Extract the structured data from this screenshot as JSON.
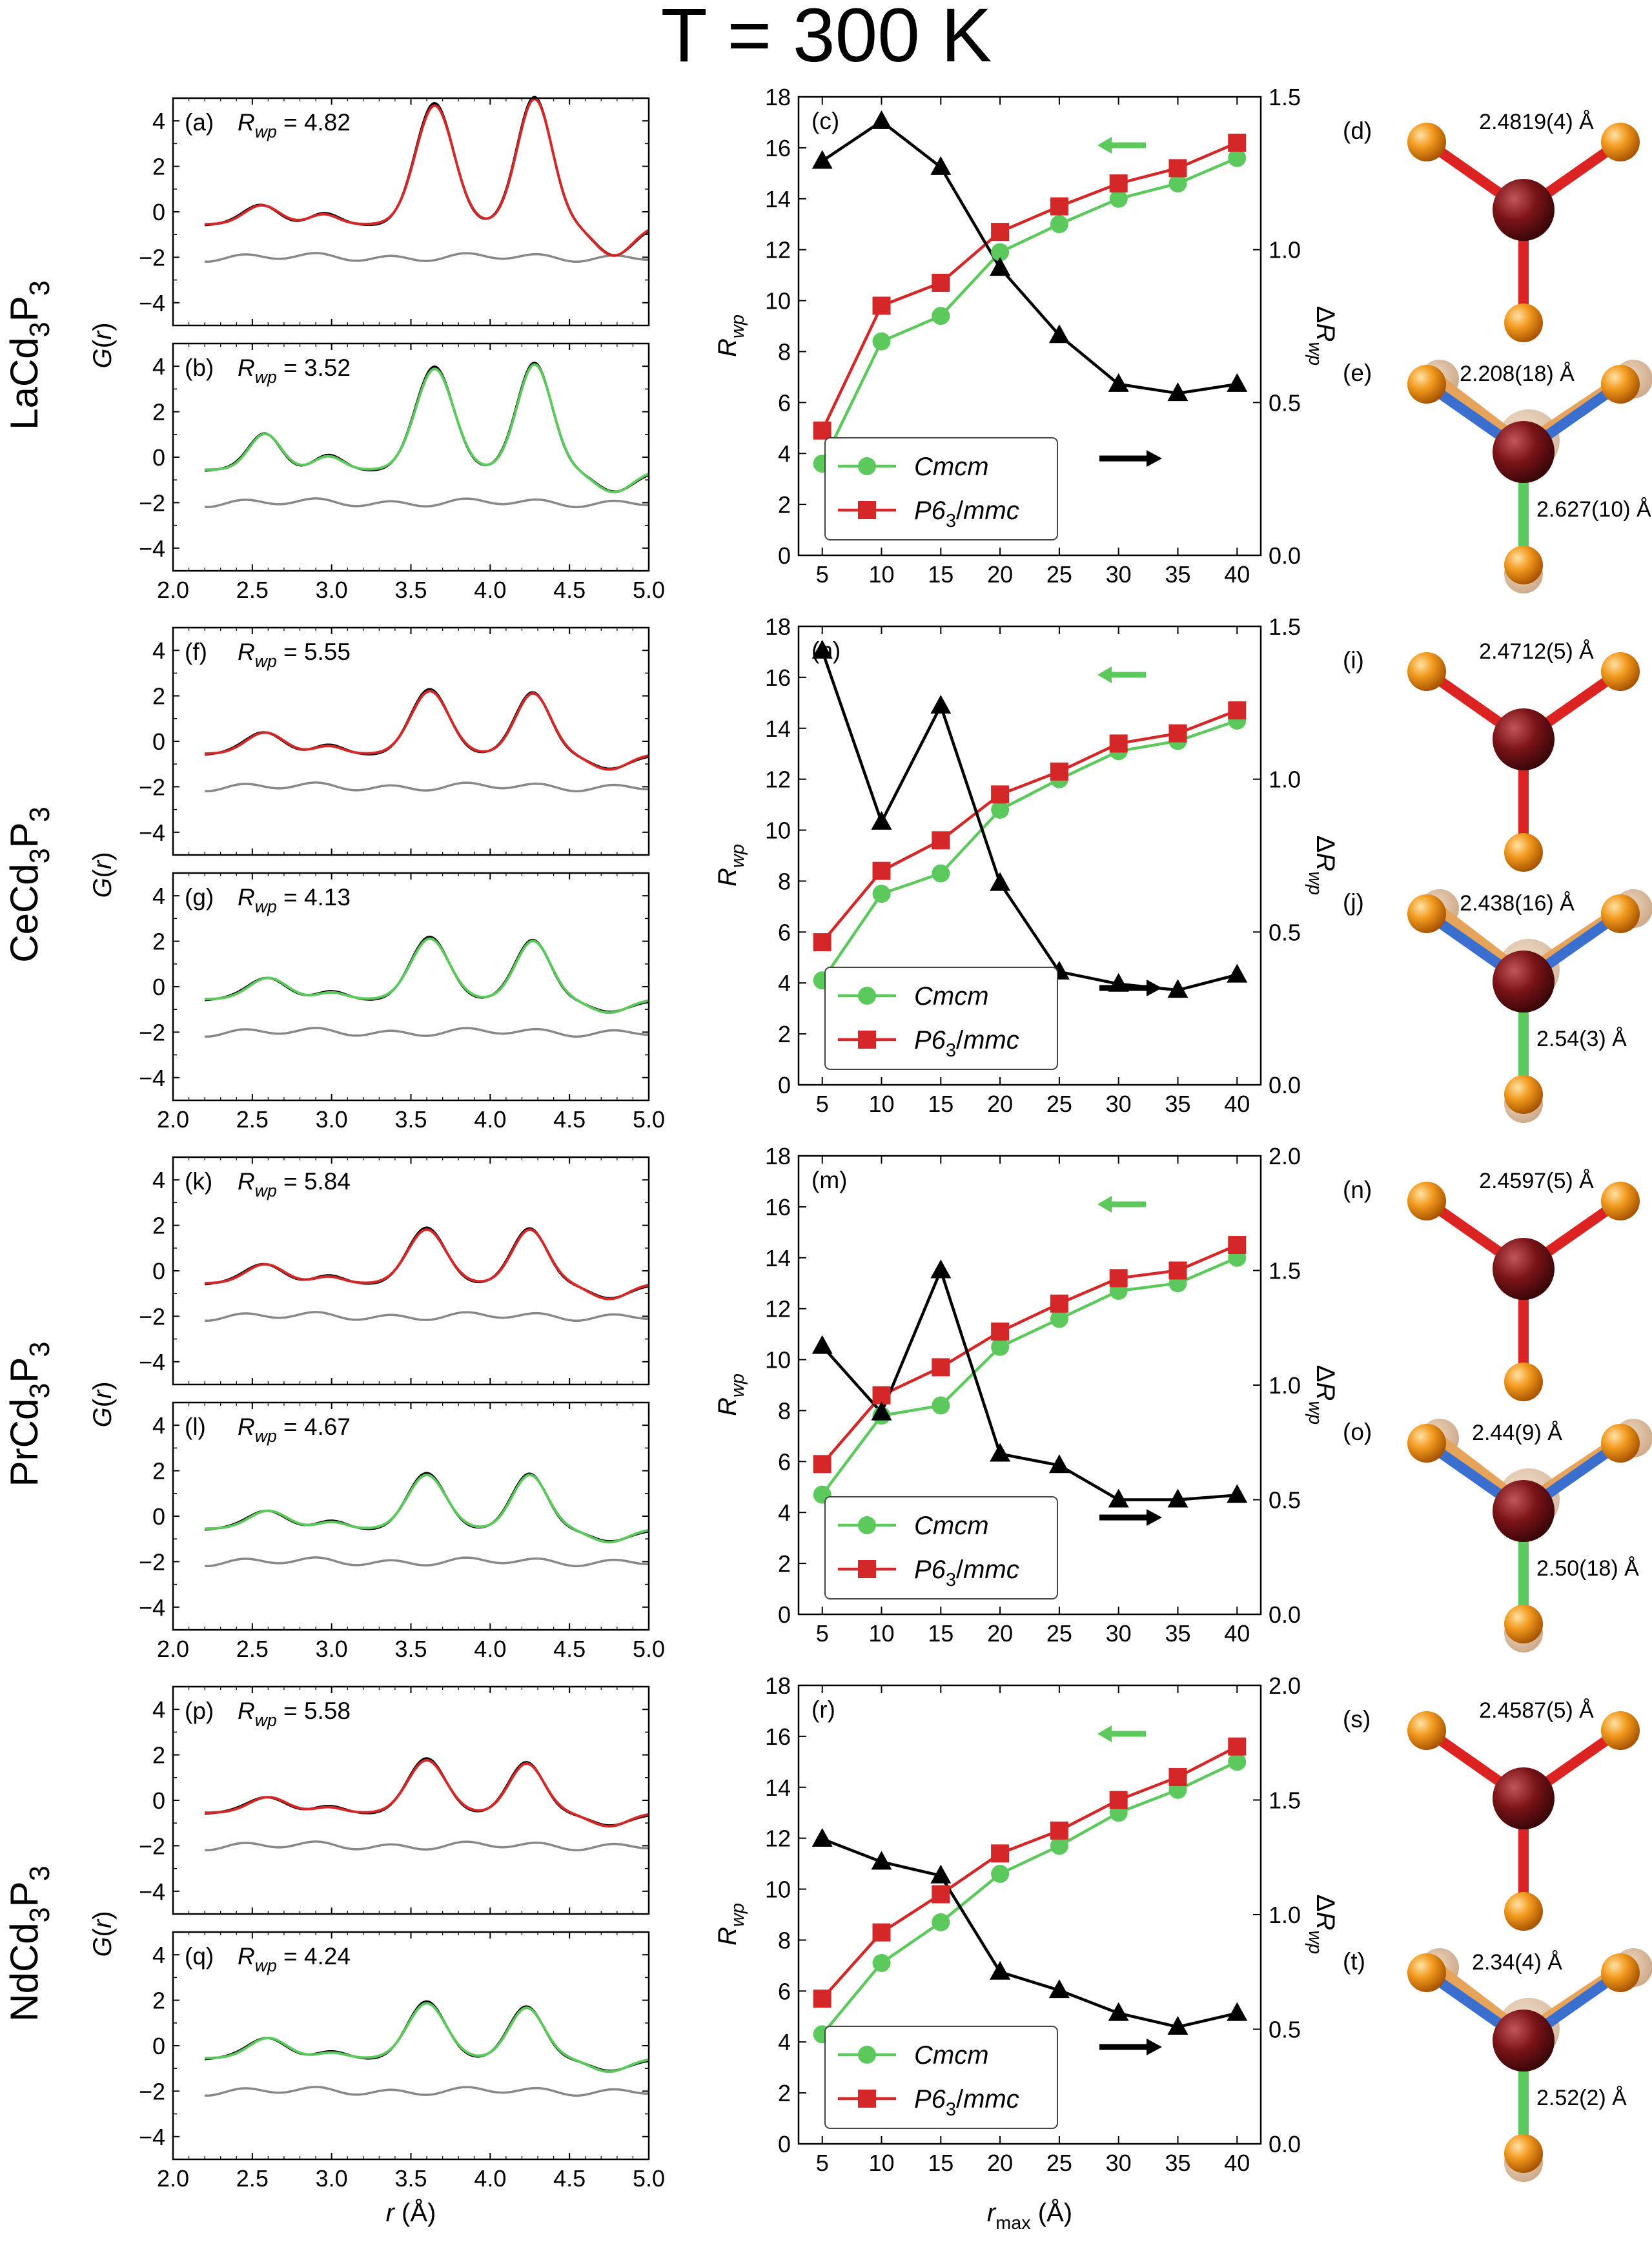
{
  "title": "T = 300 K",
  "colors": {
    "data": "#000000",
    "fit_hex": "#d62728",
    "fit_ortho": "#5cc95c",
    "difference": "#888888",
    "dR": "#000000",
    "bond_red": "#dd2222",
    "bond_blue": "#3a6fd0",
    "bond_green": "#5cc95c",
    "atom_P": "#f08a12",
    "atom_R": "#7a1418"
  },
  "gr_axes": {
    "xlabel": "r (Å)",
    "ylabel": "G(r)",
    "xlim": [
      2.0,
      5.0
    ],
    "ylim": [
      -5,
      5
    ],
    "xticks": [
      "2.0",
      "2.5",
      "3.0",
      "3.5",
      "4.0",
      "4.5",
      "5.0"
    ],
    "yticks": [
      "4",
      "2",
      "0",
      "−2",
      "−4"
    ]
  },
  "rwp_axes": {
    "xlabel": "r_max (Å)",
    "ylabel": "R_wp",
    "y2label": "ΔR_wp",
    "xticks": [
      "5",
      "10",
      "15",
      "20",
      "25",
      "30",
      "35",
      "40"
    ],
    "yticks": [
      "0",
      "2",
      "4",
      "6",
      "8",
      "10",
      "12",
      "14",
      "16",
      "18"
    ]
  },
  "legend": {
    "ortho": "Cmcm",
    "hex": "P6₃/mmc"
  },
  "chart_data": [
    {
      "compound": "LaCd₃P₃",
      "gr": [
        {
          "label": "(a)",
          "rwp_label": "R_wp = 4.82",
          "rwp": "4.82",
          "model": "hex",
          "peaks": [
            [
              2.56,
              0.85,
              0.11
            ],
            [
              2.95,
              0.45,
              0.09
            ],
            [
              3.65,
              5.3,
              0.12
            ],
            [
              4.28,
              5.6,
              0.11
            ],
            [
              4.78,
              -1.4,
              0.12
            ]
          ]
        },
        {
          "label": "(b)",
          "rwp_label": "R_wp = 3.52",
          "rwp": "3.52",
          "model": "ortho",
          "peaks": [
            [
              2.58,
              1.6,
              0.1
            ],
            [
              2.98,
              0.6,
              0.09
            ],
            [
              3.65,
              4.5,
              0.12
            ],
            [
              4.28,
              4.7,
              0.11
            ],
            [
              4.78,
              -1.0,
              0.12
            ]
          ]
        }
      ],
      "rwp_panel": {
        "label": "(c)",
        "x": [
          5,
          10,
          15,
          20,
          25,
          30,
          35,
          40
        ],
        "cmcm": [
          3.6,
          8.4,
          9.4,
          11.9,
          13.0,
          14.0,
          14.6,
          15.6
        ],
        "p63mmc": [
          4.9,
          9.8,
          10.7,
          12.7,
          13.7,
          14.6,
          15.2,
          16.2
        ],
        "dR": [
          1.29,
          1.42,
          1.27,
          0.94,
          0.72,
          0.56,
          0.53,
          0.56
        ],
        "y2lim": [
          0,
          1.5
        ],
        "y2ticks": [
          "0.0",
          "0.5",
          "1.0",
          "1.5"
        ]
      },
      "structures": [
        {
          "label": "(d)",
          "type": "trigonal",
          "bonds": [
            {
              "text": "2.4819(4) Å",
              "color": "#dd2222"
            }
          ]
        },
        {
          "label": "(e)",
          "type": "split",
          "bonds": [
            {
              "text": "2.208(18) Å",
              "color": "#3a6fd0"
            },
            {
              "text": "2.627(10) Å",
              "color": "#5cc95c"
            }
          ]
        }
      ]
    },
    {
      "compound": "CeCd₃P₃",
      "gr": [
        {
          "label": "(f)",
          "rwp_label": "R_wp = 5.55",
          "rwp": "5.55",
          "model": "hex",
          "peaks": [
            [
              2.58,
              0.95,
              0.12
            ],
            [
              2.98,
              0.35,
              0.09
            ],
            [
              3.62,
              2.8,
              0.12
            ],
            [
              4.27,
              2.7,
              0.11
            ],
            [
              4.75,
              -0.7,
              0.12
            ]
          ]
        },
        {
          "label": "(g)",
          "rwp_label": "R_wp = 4.13",
          "rwp": "4.13",
          "model": "ortho",
          "peaks": [
            [
              2.6,
              0.95,
              0.12
            ],
            [
              3.0,
              0.3,
              0.09
            ],
            [
              3.62,
              2.7,
              0.12
            ],
            [
              4.27,
              2.6,
              0.11
            ],
            [
              4.75,
              -0.6,
              0.12
            ]
          ]
        }
      ],
      "rwp_panel": {
        "label": "(h)",
        "x": [
          5,
          10,
          15,
          20,
          25,
          30,
          35,
          40
        ],
        "cmcm": [
          4.1,
          7.5,
          8.3,
          10.8,
          12.0,
          13.1,
          13.5,
          14.3
        ],
        "p63mmc": [
          5.6,
          8.4,
          9.6,
          11.4,
          12.3,
          13.4,
          13.8,
          14.7
        ],
        "dR": [
          1.42,
          0.86,
          1.24,
          0.66,
          0.37,
          0.33,
          0.31,
          0.36
        ],
        "y2lim": [
          0,
          1.5
        ],
        "y2ticks": [
          "0.0",
          "0.5",
          "1.0",
          "1.5"
        ]
      },
      "structures": [
        {
          "label": "(i)",
          "type": "trigonal",
          "bonds": [
            {
              "text": "2.4712(5) Å",
              "color": "#dd2222"
            }
          ]
        },
        {
          "label": "(j)",
          "type": "split",
          "bonds": [
            {
              "text": "2.438(16) Å",
              "color": "#3a6fd0"
            },
            {
              "text": "2.54(3) Å",
              "color": "#5cc95c"
            }
          ]
        }
      ]
    },
    {
      "compound": "PrCd₃P₃",
      "gr": [
        {
          "label": "(k)",
          "rwp_label": "R_wp = 5.84",
          "rwp": "5.84",
          "model": "hex",
          "peaks": [
            [
              2.58,
              0.85,
              0.12
            ],
            [
              2.98,
              0.3,
              0.09
            ],
            [
              3.6,
              2.4,
              0.12
            ],
            [
              4.25,
              2.4,
              0.11
            ],
            [
              4.75,
              -0.7,
              0.12
            ]
          ]
        },
        {
          "label": "(l)",
          "rwp_label": "R_wp = 4.67",
          "rwp": "4.67",
          "model": "ortho",
          "peaks": [
            [
              2.6,
              0.8,
              0.12
            ],
            [
              3.0,
              0.3,
              0.09
            ],
            [
              3.6,
              2.4,
              0.12
            ],
            [
              4.25,
              2.4,
              0.11
            ],
            [
              4.75,
              -0.6,
              0.12
            ]
          ]
        }
      ],
      "rwp_panel": {
        "label": "(m)",
        "x": [
          5,
          10,
          15,
          20,
          25,
          30,
          35,
          40
        ],
        "cmcm": [
          4.7,
          7.8,
          8.2,
          10.5,
          11.6,
          12.7,
          13.0,
          14.0
        ],
        "p63mmc": [
          5.9,
          8.6,
          9.7,
          11.1,
          12.2,
          13.2,
          13.5,
          14.5
        ],
        "dR": [
          1.17,
          0.88,
          1.5,
          0.7,
          0.65,
          0.5,
          0.5,
          0.52
        ],
        "y2lim": [
          0,
          2.0
        ],
        "y2ticks": [
          "0.0",
          "0.5",
          "1.0",
          "1.5",
          "2.0"
        ]
      },
      "structures": [
        {
          "label": "(n)",
          "type": "trigonal",
          "bonds": [
            {
              "text": "2.4597(5) Å",
              "color": "#dd2222"
            }
          ]
        },
        {
          "label": "(o)",
          "type": "split",
          "bonds": [
            {
              "text": "2.44(9) Å",
              "color": "#3a6fd0"
            },
            {
              "text": "2.50(18) Å",
              "color": "#5cc95c"
            }
          ]
        }
      ]
    },
    {
      "compound": "NdCd₃P₃",
      "gr": [
        {
          "label": "(p)",
          "rwp_label": "R_wp = 5.58",
          "rwp": "5.58",
          "model": "hex",
          "peaks": [
            [
              2.6,
              0.7,
              0.12
            ],
            [
              2.98,
              0.25,
              0.09
            ],
            [
              3.6,
              2.35,
              0.12
            ],
            [
              4.23,
              2.2,
              0.11
            ],
            [
              4.75,
              -0.6,
              0.12
            ]
          ]
        },
        {
          "label": "(q)",
          "rwp_label": "R_wp = 4.24",
          "rwp": "4.24",
          "model": "ortho",
          "peaks": [
            [
              2.6,
              0.9,
              0.12
            ],
            [
              3.0,
              0.25,
              0.09
            ],
            [
              3.6,
              2.45,
              0.12
            ],
            [
              4.23,
              2.25,
              0.11
            ],
            [
              4.75,
              -0.6,
              0.12
            ]
          ]
        }
      ],
      "rwp_panel": {
        "label": "(r)",
        "x": [
          5,
          10,
          15,
          20,
          25,
          30,
          35,
          40
        ],
        "cmcm": [
          4.3,
          7.1,
          8.7,
          10.6,
          11.7,
          13.0,
          13.9,
          15.0
        ],
        "p63mmc": [
          5.7,
          8.3,
          9.8,
          11.4,
          12.3,
          13.5,
          14.4,
          15.6
        ],
        "dR": [
          1.33,
          1.23,
          1.17,
          0.75,
          0.67,
          0.57,
          0.51,
          0.57
        ],
        "y2lim": [
          0,
          2.0
        ],
        "y2ticks": [
          "0.0",
          "0.5",
          "1.0",
          "1.5",
          "2.0"
        ]
      },
      "structures": [
        {
          "label": "(s)",
          "type": "trigonal",
          "bonds": [
            {
              "text": "2.4587(5) Å",
              "color": "#dd2222"
            }
          ]
        },
        {
          "label": "(t)",
          "type": "split",
          "bonds": [
            {
              "text": "2.34(4) Å",
              "color": "#3a6fd0"
            },
            {
              "text": "2.52(2) Å",
              "color": "#5cc95c"
            }
          ]
        }
      ]
    }
  ]
}
